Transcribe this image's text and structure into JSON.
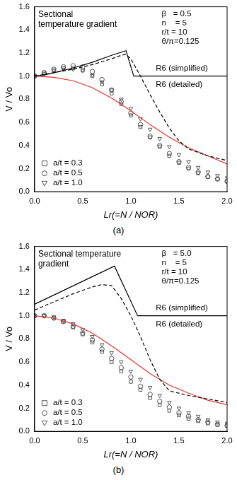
{
  "chart_data": [
    {
      "type": "scatter",
      "caption": "(a)",
      "x_label": "Lr(=N / NOR)",
      "y_label": "V / Vo",
      "annotation": [
        "Sectional",
        "temperature gradient"
      ],
      "parameters": [
        "β   = 0.5",
        "n    = 5",
        "r/t = 10",
        "θ/π=0.125"
      ],
      "xlim": [
        0,
        2.0
      ],
      "xticks": [
        {
          "value": 0,
          "label": "0.0"
        },
        {
          "value": 0.5,
          "label": "0.5"
        },
        {
          "value": 1.0,
          "label": "1.0"
        },
        {
          "value": 1.5,
          "label": "1.5"
        },
        {
          "value": 2.0,
          "label": "2.0"
        }
      ],
      "ylim": [
        0,
        1.6
      ],
      "yticks": [
        {
          "value": 0,
          "label": "0.0"
        },
        {
          "value": 0.2,
          "label": "0.2"
        },
        {
          "value": 0.4,
          "label": "0.4"
        },
        {
          "value": 0.6,
          "label": "0.6"
        },
        {
          "value": 0.8,
          "label": "0.8"
        },
        {
          "value": 1.0,
          "label": "1.0"
        },
        {
          "value": 1.2,
          "label": "1.2"
        },
        {
          "value": 1.4,
          "label": "1.4"
        },
        {
          "value": 1.6,
          "label": "1.6"
        }
      ],
      "grid": false,
      "legend": "lower left",
      "series": [
        {
          "name": "R6 (simplified)",
          "type": "line",
          "line_style": "solid",
          "color": "#000000",
          "x": [
            0,
            0.1,
            0.2,
            0.3,
            0.4,
            0.6,
            0.8,
            0.95,
            1.03,
            2.0
          ],
          "values": [
            1.0,
            1.01,
            1.03,
            1.05,
            1.07,
            1.12,
            1.18,
            1.22,
            1.0,
            1.0
          ]
        },
        {
          "name": "R6 (detailed)",
          "type": "line",
          "line_style": "dashed",
          "color": "#000000",
          "x": [
            0,
            0.2,
            0.4,
            0.6,
            0.8,
            0.9,
            0.95,
            1.0,
            1.1,
            1.2,
            1.3,
            1.4,
            1.5,
            1.6,
            1.8,
            2.0
          ],
          "values": [
            1.0,
            1.03,
            1.06,
            1.1,
            1.15,
            1.18,
            1.19,
            1.15,
            1.0,
            0.84,
            0.69,
            0.55,
            0.44,
            0.37,
            0.31,
            0.27
          ]
        },
        {
          "type": "line",
          "line_style": "solid",
          "color": "#e8312a",
          "x": [
            0,
            0.2,
            0.4,
            0.6,
            0.8,
            1.0,
            1.2,
            1.4,
            1.6,
            1.8,
            2.0
          ],
          "values": [
            1.0,
            0.99,
            0.96,
            0.9,
            0.81,
            0.7,
            0.58,
            0.47,
            0.38,
            0.31,
            0.24
          ]
        },
        {
          "name": "a/t = 0.3",
          "type": "scatter",
          "marker": "square",
          "color": "#555555",
          "x": [
            0,
            0.1,
            0.2,
            0.3,
            0.4,
            0.5,
            0.6,
            0.7,
            0.8,
            0.9,
            1.0,
            1.1,
            1.2,
            1.3,
            1.4,
            1.5,
            1.6,
            1.7,
            1.8,
            1.9,
            2.0
          ],
          "values": [
            1.0,
            1.03,
            1.05,
            1.07,
            1.07,
            1.05,
            1.0,
            0.93,
            0.85,
            0.76,
            0.66,
            0.56,
            0.47,
            0.39,
            0.31,
            0.25,
            0.2,
            0.16,
            0.13,
            0.11,
            0.09
          ]
        },
        {
          "name": "a/t = 0.5",
          "type": "scatter",
          "marker": "circle",
          "color": "#555555",
          "x": [
            0,
            0.1,
            0.2,
            0.3,
            0.4,
            0.5,
            0.6,
            0.7,
            0.8,
            0.9,
            1.0,
            1.1,
            1.2,
            1.3,
            1.4,
            1.5,
            1.6,
            1.7,
            1.8,
            1.9,
            2.0
          ],
          "values": [
            1.0,
            1.03,
            1.06,
            1.08,
            1.09,
            1.08,
            1.04,
            0.97,
            0.88,
            0.78,
            0.68,
            0.58,
            0.48,
            0.4,
            0.33,
            0.26,
            0.21,
            0.17,
            0.13,
            0.11,
            0.09
          ]
        },
        {
          "name": "a/t = 1.0",
          "type": "scatter",
          "marker": "triangle-down",
          "color": "#555555",
          "x": [
            0,
            0.1,
            0.2,
            0.3,
            0.4,
            0.5,
            0.6,
            0.7,
            0.8,
            0.9,
            1.0,
            1.1,
            1.2,
            1.3,
            1.4,
            1.5,
            1.6,
            1.7,
            1.8,
            1.9,
            2.0
          ],
          "values": [
            1.0,
            1.02,
            1.05,
            1.06,
            1.06,
            1.05,
            1.01,
            0.95,
            0.88,
            0.8,
            0.72,
            0.63,
            0.54,
            0.46,
            0.39,
            0.32,
            0.26,
            0.21,
            0.17,
            0.14,
            0.12
          ]
        }
      ]
    },
    {
      "type": "scatter",
      "caption": "(b)",
      "x_label": "Lr(=N / NOR)",
      "y_label": "V / Vo",
      "annotation": [
        "Sectional temperature",
        "gradient"
      ],
      "parameters": [
        "β   = 5.0",
        "n    = 5",
        "r/t = 10",
        "θ/π=0.125"
      ],
      "xlim": [
        0,
        2.0
      ],
      "xticks": [
        {
          "value": 0,
          "label": "0.0"
        },
        {
          "value": 0.5,
          "label": "0.5"
        },
        {
          "value": 1.0,
          "label": "1.0"
        },
        {
          "value": 1.5,
          "label": "1.5"
        },
        {
          "value": 2.0,
          "label": "2.0"
        }
      ],
      "ylim": [
        0,
        1.6
      ],
      "yticks": [
        {
          "value": 0,
          "label": "0.0"
        },
        {
          "value": 0.2,
          "label": "0.2"
        },
        {
          "value": 0.4,
          "label": "0.4"
        },
        {
          "value": 0.6,
          "label": "0.6"
        },
        {
          "value": 0.8,
          "label": "0.8"
        },
        {
          "value": 1.0,
          "label": "1.0"
        },
        {
          "value": 1.2,
          "label": "1.2"
        },
        {
          "value": 1.4,
          "label": "1.4"
        },
        {
          "value": 1.6,
          "label": "1.6"
        }
      ],
      "grid": false,
      "legend": "lower left",
      "series": [
        {
          "name": "R6 (simplified)",
          "type": "line",
          "line_style": "solid",
          "color": "#000000",
          "x": [
            0,
            0.83,
            1.07,
            2.0
          ],
          "values": [
            1.1,
            1.43,
            1.0,
            1.0
          ]
        },
        {
          "name": "R6 (detailed)",
          "type": "line",
          "line_style": "dashed",
          "color": "#000000",
          "x": [
            0,
            0.2,
            0.4,
            0.6,
            0.7,
            0.8,
            0.9,
            1.0,
            1.1,
            1.2,
            1.3,
            1.4,
            1.6,
            1.8,
            2.0
          ],
          "values": [
            1.05,
            1.12,
            1.19,
            1.25,
            1.27,
            1.26,
            1.15,
            1.0,
            0.82,
            0.62,
            0.45,
            0.35,
            0.31,
            0.28,
            0.25
          ]
        },
        {
          "type": "line",
          "line_style": "solid",
          "color": "#e8312a",
          "x": [
            0,
            0.2,
            0.4,
            0.6,
            0.8,
            1.0,
            1.2,
            1.4,
            1.6,
            1.8,
            2.0
          ],
          "values": [
            1.0,
            0.98,
            0.93,
            0.85,
            0.74,
            0.62,
            0.5,
            0.4,
            0.33,
            0.27,
            0.23
          ]
        },
        {
          "name": "a/t = 0.3",
          "type": "scatter",
          "marker": "square",
          "color": "#555555",
          "x": [
            0,
            0.1,
            0.2,
            0.3,
            0.4,
            0.5,
            0.6,
            0.7,
            0.8,
            0.9,
            1.0,
            1.1,
            1.2,
            1.3,
            1.4,
            1.5,
            1.6,
            1.7,
            1.8,
            1.9,
            2.0
          ],
          "values": [
            1.0,
            1.0,
            0.98,
            0.95,
            0.9,
            0.84,
            0.77,
            0.69,
            0.6,
            0.52,
            0.43,
            0.36,
            0.29,
            0.23,
            0.18,
            0.14,
            0.11,
            0.09,
            0.07,
            0.06,
            0.05
          ]
        },
        {
          "name": "a/t = 0.5",
          "type": "scatter",
          "marker": "circle",
          "color": "#555555",
          "x": [
            0,
            0.1,
            0.2,
            0.3,
            0.4,
            0.5,
            0.6,
            0.7,
            0.8,
            0.9,
            1.0,
            1.1,
            1.2,
            1.3,
            1.4,
            1.5,
            1.6,
            1.7,
            1.8,
            1.9,
            2.0
          ],
          "values": [
            1.0,
            1.0,
            0.98,
            0.95,
            0.91,
            0.85,
            0.79,
            0.71,
            0.63,
            0.55,
            0.47,
            0.39,
            0.32,
            0.26,
            0.21,
            0.16,
            0.13,
            0.1,
            0.08,
            0.06,
            0.05
          ]
        },
        {
          "name": "a/t = 1.0",
          "type": "scatter",
          "marker": "triangle-down",
          "color": "#555555",
          "x": [
            0,
            0.1,
            0.2,
            0.3,
            0.4,
            0.5,
            0.6,
            0.7,
            0.8,
            0.9,
            1.0,
            1.1,
            1.2,
            1.3,
            1.4,
            1.5,
            1.6,
            1.7,
            1.8,
            1.9,
            2.0
          ],
          "values": [
            1.0,
            1.0,
            0.99,
            0.96,
            0.93,
            0.88,
            0.82,
            0.75,
            0.68,
            0.6,
            0.52,
            0.45,
            0.38,
            0.31,
            0.25,
            0.2,
            0.16,
            0.13,
            0.1,
            0.08,
            0.07
          ]
        }
      ]
    }
  ]
}
